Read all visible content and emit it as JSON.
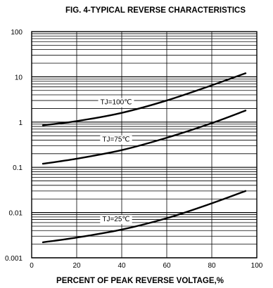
{
  "chart_data": {
    "type": "line",
    "title": "FIG. 4-TYPICAL REVERSE CHARACTERISTICS",
    "xlabel": "PERCENT OF PEAK REVERSE VOLTAGE,%",
    "ylabel": "",
    "xlim": [
      0,
      100
    ],
    "ylim": [
      0.001,
      100
    ],
    "y_scale": "log",
    "grid": true,
    "x_ticks": [
      0,
      20,
      40,
      60,
      80,
      100
    ],
    "x_tick_labels": [
      "0",
      "20",
      "40",
      "60",
      "80",
      "100"
    ],
    "y_ticks": [
      0.001,
      0.01,
      0.1,
      1,
      10,
      100
    ],
    "y_tick_labels": [
      "0.001",
      "0.01",
      "0.1",
      "1",
      "10",
      "100"
    ],
    "series": [
      {
        "name": "TJ=100℃",
        "x": [
          5,
          20,
          40,
          60,
          80,
          95
        ],
        "y": [
          0.85,
          1.05,
          1.6,
          3.0,
          6.5,
          12
        ]
      },
      {
        "name": "TJ=75℃",
        "x": [
          5,
          20,
          40,
          60,
          80,
          95
        ],
        "y": [
          0.12,
          0.155,
          0.24,
          0.45,
          0.95,
          1.8
        ]
      },
      {
        "name": "TJ=25℃",
        "x": [
          5,
          20,
          40,
          60,
          80,
          95
        ],
        "y": [
          0.0022,
          0.0028,
          0.0042,
          0.0075,
          0.016,
          0.03
        ]
      }
    ]
  }
}
